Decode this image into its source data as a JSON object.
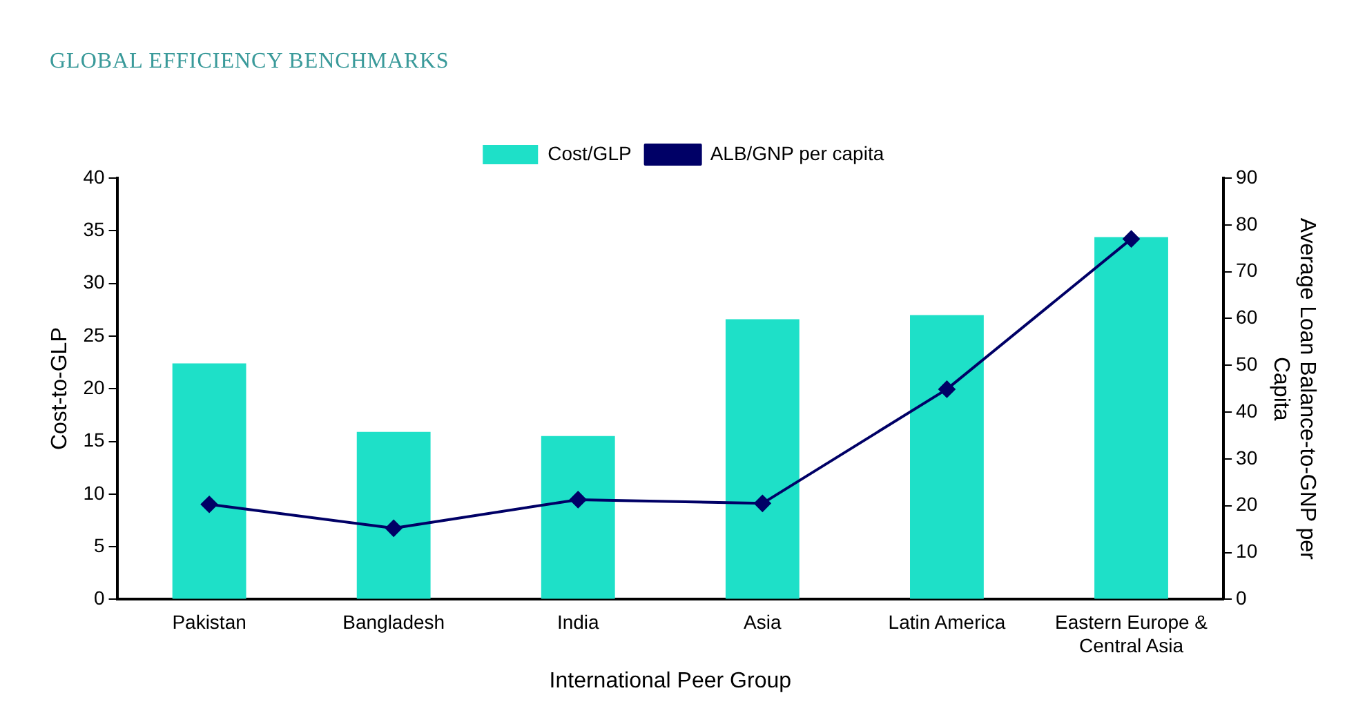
{
  "chart_data": {
    "type": "bar",
    "title": "GLOBAL EFFICIENCY BENCHMARKS",
    "xlabel": "International Peer Group",
    "ylabel": "Cost-to-GLP",
    "y2label": "Average Loan Balance-to-GNP per Capita",
    "categories": [
      "Pakistan",
      "Bangladesh",
      "India",
      "Asia",
      "Latin America",
      "Eastern Europe & Central Asia"
    ],
    "series": [
      {
        "name": "Cost/GLP",
        "color": "#1ee0c8",
        "values": [
          22.4,
          15.9,
          15.5,
          26.6,
          27.0,
          34.4
        ]
      },
      {
        "name": "ALB/GNP per capita",
        "type": "line",
        "axis": "y2",
        "color": "#000066",
        "marker": "diamond",
        "values": [
          20.3,
          15.2,
          21.3,
          20.5,
          44.9,
          77.0
        ]
      }
    ],
    "ylim": [
      0,
      40
    ],
    "yticks": [
      0,
      5,
      10,
      15,
      20,
      25,
      30,
      35,
      40
    ],
    "y2lim": [
      0,
      90
    ],
    "y2ticks": [
      0,
      10,
      20,
      30,
      40,
      50,
      60,
      70,
      80,
      90
    ],
    "grid": false,
    "legend": "top"
  }
}
